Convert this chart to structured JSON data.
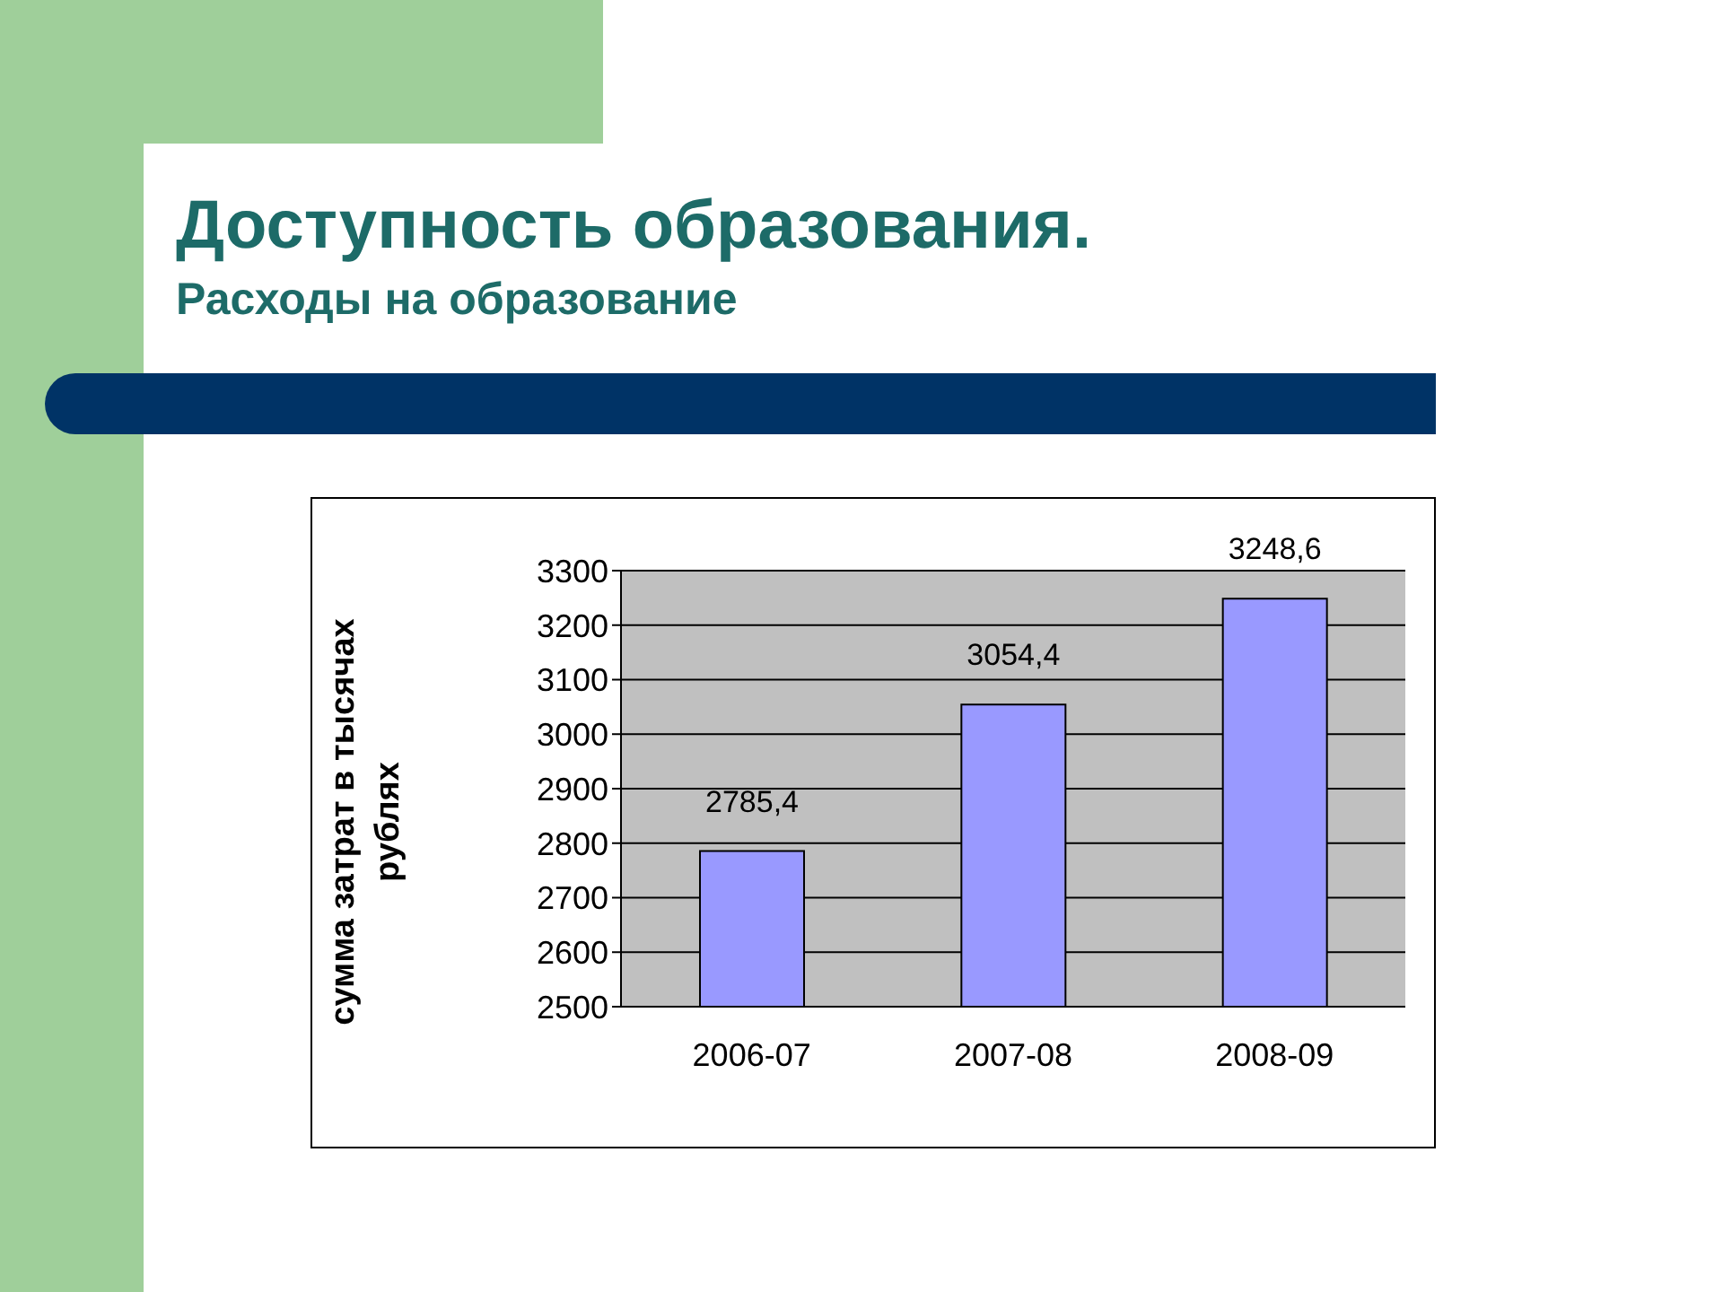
{
  "chart_data": {
    "type": "bar",
    "title": "Доступность образования.",
    "subtitle": "Расходы на образование",
    "ylabel": "сумма затрат в тысячах рублях",
    "categories": [
      "2006-07",
      "2007-08",
      "2008-09"
    ],
    "values": [
      2785.4,
      3054.4,
      3248.6
    ],
    "color": "#9999ff",
    "value_labels": [
      "2785,4",
      "3054,4",
      "3248,6"
    ],
    "ylim": [
      2500,
      3300
    ],
    "yticks": [
      2500,
      2600,
      2700,
      2800,
      2900,
      3000,
      3100,
      3200,
      3300
    ],
    "grid": "y"
  }
}
